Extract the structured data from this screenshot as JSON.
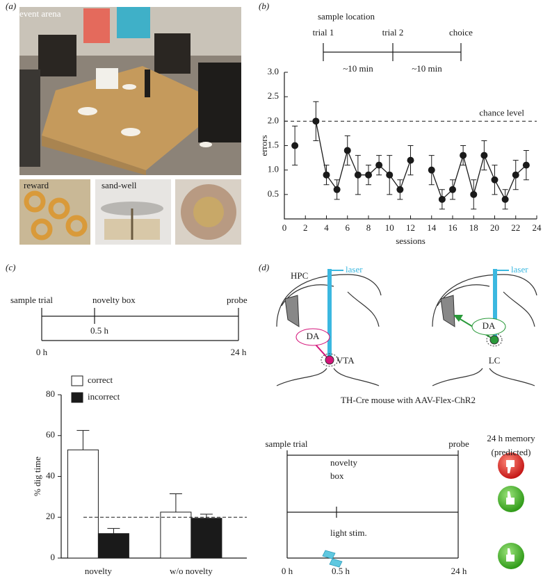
{
  "panel_labels": [
    "(a)",
    "(b)",
    "(c)",
    "(d)"
  ],
  "photo_labels": [
    "event arena",
    "reward",
    "sand-well"
  ],
  "b_timeline": {
    "heading": "sample location",
    "events": [
      "trial 1",
      "trial 2",
      "choice"
    ],
    "intervals": [
      "~10 min",
      "~10 min"
    ]
  },
  "c_timeline": {
    "events": [
      "sample trial",
      "novelty box",
      "probe"
    ],
    "marker": "0.5 h",
    "start": "0 h",
    "end": "24 h"
  },
  "d_diagram": {
    "left": [
      "laser",
      "HPC",
      "DA",
      "VTA"
    ],
    "right": [
      "laser",
      "DA",
      "LC"
    ],
    "caption": "TH-Cre mouse with AAV-Flex-ChR2"
  },
  "d_timeline": {
    "events": [
      "sample trial",
      "probe"
    ],
    "novelty": [
      "novelty",
      "box"
    ],
    "stim": "light stim.",
    "start": "0 h",
    "marker": "0.5 h",
    "end": "24 h",
    "memory": [
      "24 h memory",
      "(predicted)"
    ]
  },
  "chart_data": [
    {
      "type": "line",
      "xlabel": "sessions",
      "ylabel": "errors",
      "x": [
        1,
        2,
        3,
        4,
        5,
        6,
        7,
        8,
        9,
        10,
        11,
        12,
        13,
        14,
        15,
        16,
        17,
        18,
        19,
        20,
        21,
        22,
        23
      ],
      "values": [
        1.5,
        null,
        2.0,
        0.9,
        0.6,
        1.4,
        0.9,
        0.9,
        1.1,
        0.9,
        0.6,
        1.2,
        null,
        1.0,
        0.4,
        0.6,
        1.3,
        0.5,
        1.3,
        0.8,
        0.4,
        0.9,
        1.1
      ],
      "errors": [
        0.4,
        null,
        0.4,
        0.2,
        0.2,
        0.3,
        0.4,
        0.2,
        0.2,
        0.4,
        0.2,
        0.3,
        null,
        0.3,
        0.2,
        0.2,
        0.2,
        0.3,
        0.3,
        0.3,
        0.2,
        0.3,
        0.3
      ],
      "color": "#1a1a1a",
      "xlim": [
        0,
        24
      ],
      "xticks": [
        0,
        2,
        4,
        6,
        8,
        10,
        12,
        14,
        16,
        18,
        20,
        22,
        24
      ],
      "ylim": [
        0,
        3
      ],
      "yticks": [
        0.5,
        {
          "value": 1,
          "label": "1.0"
        },
        1.5,
        {
          "value": 2,
          "label": "2.0"
        },
        2.5,
        {
          "value": 3,
          "label": "3.0"
        }
      ],
      "chance_level": {
        "value": 2,
        "label": "chance level"
      }
    },
    {
      "type": "bar",
      "ylabel": "% dig time",
      "categories": [
        "novelty",
        "w/o novelty"
      ],
      "series": [
        {
          "name": "correct",
          "color": "#ffffff",
          "values": [
            53,
            22.5
          ],
          "errors": [
            9.5,
            9
          ]
        },
        {
          "name": "incorrect",
          "color": "#1a1a1a",
          "values": [
            12,
            19.5
          ],
          "errors": [
            2.5,
            2
          ]
        }
      ],
      "ylim": [
        0,
        80
      ],
      "yticks": [
        0,
        20,
        40,
        60,
        80
      ],
      "reference_line": 20
    }
  ]
}
